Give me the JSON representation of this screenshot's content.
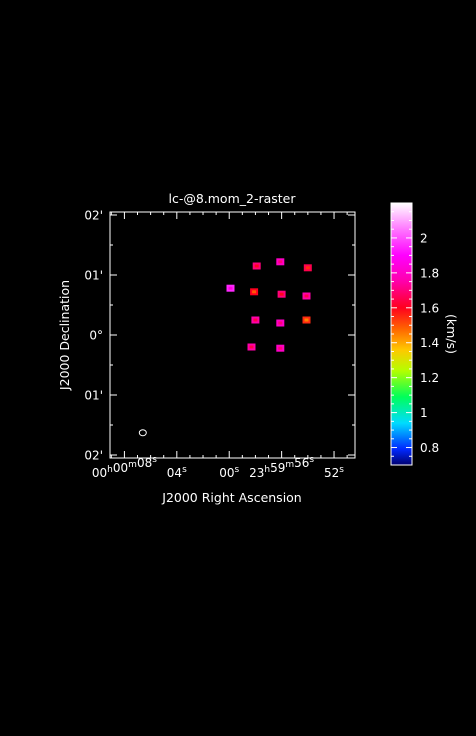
{
  "figure": {
    "title": "lc-@8.mom_2-raster",
    "background": "#000000",
    "foreground": "#ffffff"
  },
  "chart_data": {
    "type": "heatmap",
    "title": "lc-@8.mom_2-raster",
    "xlabel": "J2000 Right Ascension",
    "ylabel": "J2000 Declination",
    "x_ticks": [
      {
        "sec": 8,
        "label": "00h00m08s",
        "parts": [
          [
            "00",
            "h"
          ],
          [
            "00",
            "m"
          ],
          [
            "08",
            "s"
          ]
        ]
      },
      {
        "sec": 4,
        "label": "04s",
        "parts": [
          [
            "04",
            "s"
          ]
        ]
      },
      {
        "sec": 0,
        "label": "00s",
        "parts": [
          [
            "00",
            "s"
          ]
        ]
      },
      {
        "sec": -4,
        "label": "23h59m56s",
        "parts": [
          [
            "23",
            "h"
          ],
          [
            "59",
            "m"
          ],
          [
            "56",
            "s"
          ]
        ]
      },
      {
        "sec": -8,
        "label": "52s",
        "parts": [
          [
            "52",
            "s"
          ]
        ]
      }
    ],
    "x_range_sec": [
      9.1,
      -9.6
    ],
    "y_ticks": [
      {
        "arcmin": 2,
        "label": "02'"
      },
      {
        "arcmin": 1,
        "label": "01'"
      },
      {
        "arcmin": 0,
        "label": "0°"
      },
      {
        "arcmin": -1,
        "label": "01'"
      },
      {
        "arcmin": -2,
        "label": "02'"
      }
    ],
    "y_range_arcmin": [
      -2.05,
      2.05
    ],
    "colorbar": {
      "label": "(km/s)",
      "range": [
        0.7,
        2.2
      ],
      "ticks": [
        0.8,
        1,
        1.2,
        1.4,
        1.6,
        1.8,
        2
      ],
      "tick_labels": [
        "0.8",
        "1",
        "1.2",
        "1.4",
        "1.6",
        "1.8",
        "2"
      ],
      "colormap": "rainbow (dark blue → cyan → green → yellow → orange → red → magenta → white)"
    },
    "beam": {
      "ra_sec": 6.6,
      "dec_arcmin": -1.63
    },
    "blobs": [
      {
        "ra_sec": -2.1,
        "dec_arcmin": 1.15,
        "value": 1.7
      },
      {
        "ra_sec": -3.9,
        "dec_arcmin": 1.22,
        "value": 1.8
      },
      {
        "ra_sec": -6.0,
        "dec_arcmin": 1.12,
        "value": 1.65
      },
      {
        "ra_sec": -0.1,
        "dec_arcmin": 0.78,
        "value": 1.95
      },
      {
        "ra_sec": -1.9,
        "dec_arcmin": 0.72,
        "value": 1.6
      },
      {
        "ra_sec": -4.0,
        "dec_arcmin": 0.68,
        "value": 1.7
      },
      {
        "ra_sec": -5.9,
        "dec_arcmin": 0.65,
        "value": 1.75
      },
      {
        "ra_sec": -2.0,
        "dec_arcmin": 0.25,
        "value": 1.75
      },
      {
        "ra_sec": -3.9,
        "dec_arcmin": 0.2,
        "value": 1.8
      },
      {
        "ra_sec": -5.9,
        "dec_arcmin": 0.25,
        "value": 1.55
      },
      {
        "ra_sec": -1.7,
        "dec_arcmin": -0.2,
        "value": 1.75
      },
      {
        "ra_sec": -3.9,
        "dec_arcmin": -0.22,
        "value": 1.8
      }
    ]
  }
}
